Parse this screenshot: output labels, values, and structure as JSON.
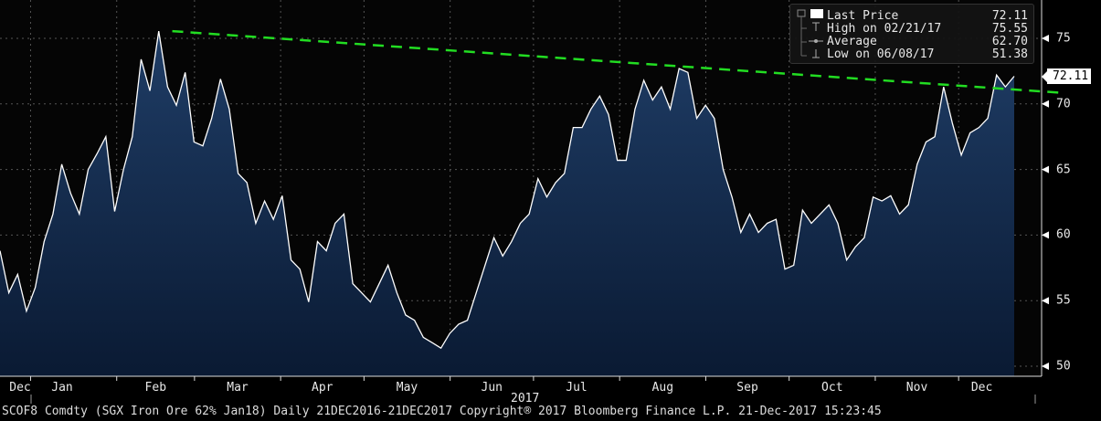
{
  "chart_data": {
    "type": "area",
    "ticker": "SCOF8 Comdty",
    "series_name": "Last Price",
    "x_start": "2016-12-21",
    "x_end": "2017-12-21",
    "ylim": [
      49,
      77.5
    ],
    "yticks": [
      50,
      55,
      60,
      65,
      70,
      75
    ],
    "xtick_labels": [
      "Dec",
      "Jan",
      "Feb",
      "Mar",
      "Apr",
      "May",
      "Jun",
      "Jul",
      "Aug",
      "Sep",
      "Oct",
      "Nov",
      "Dec"
    ],
    "year_label": "2017",
    "grid": true,
    "legend_position": "top-right",
    "colors": {
      "line": "#ffffff",
      "fill_top": "#1f3d66",
      "fill_bottom": "#0a1a33",
      "trend": "#22dd22"
    },
    "values": [
      58.8,
      55.6,
      57,
      54.2,
      56,
      59.5,
      61.6,
      65.4,
      63.2,
      61.6,
      65,
      66.2,
      67.5,
      61.8,
      65,
      67.5,
      73.4,
      71,
      75.55,
      71.3,
      69.9,
      72.4,
      67.1,
      66.8,
      68.9,
      71.9,
      69.6,
      64.7,
      64,
      60.9,
      62.6,
      61.2,
      63,
      58.1,
      57.4,
      54.9,
      59.5,
      58.8,
      60.9,
      61.6,
      56.3,
      55.6,
      54.9,
      56.3,
      57.7,
      55.6,
      53.9,
      53.5,
      52.2,
      51.8,
      51.38,
      52.5,
      53.2,
      53.5,
      55.6,
      57.7,
      59.8,
      58.4,
      59.5,
      60.9,
      61.6,
      64.3,
      62.9,
      64,
      64.7,
      68.2,
      68.2,
      69.6,
      70.6,
      69.2,
      65.7,
      65.7,
      69.6,
      71.8,
      70.3,
      71.3,
      69.6,
      72.7,
      72.4,
      68.9,
      69.9,
      68.9,
      65,
      62.9,
      60.2,
      61.6,
      60.2,
      60.9,
      61.2,
      57.4,
      57.7,
      61.9,
      60.9,
      61.6,
      62.3,
      60.9,
      58.1,
      59.1,
      59.8,
      62.9,
      62.6,
      63,
      61.6,
      62.3,
      65.4,
      67.1,
      67.5,
      71.3,
      68.5,
      66.1,
      67.8,
      68.2,
      68.9,
      72.2,
      71.3,
      72.11
    ],
    "trendline": {
      "start": {
        "date": "2017-02-21",
        "value": 75.55
      },
      "end": {
        "date": "2017-12-21",
        "value": 71.1
      }
    },
    "last_value_label": "72.11",
    "legend": [
      {
        "label": "Last Price",
        "value": "72.11"
      },
      {
        "label": "High on 02/21/17",
        "value": "75.55"
      },
      {
        "label": "Average",
        "value": "62.70"
      },
      {
        "label": "Low on 06/08/17",
        "value": "51.38"
      }
    ]
  },
  "footer": "SCOF8 Comdty (SGX Iron Ore 62%  Jan18)  Daily 21DEC2016-21DEC2017  Copyright® 2017 Bloomberg Finance L.P.  21-Dec-2017 15:23:45"
}
